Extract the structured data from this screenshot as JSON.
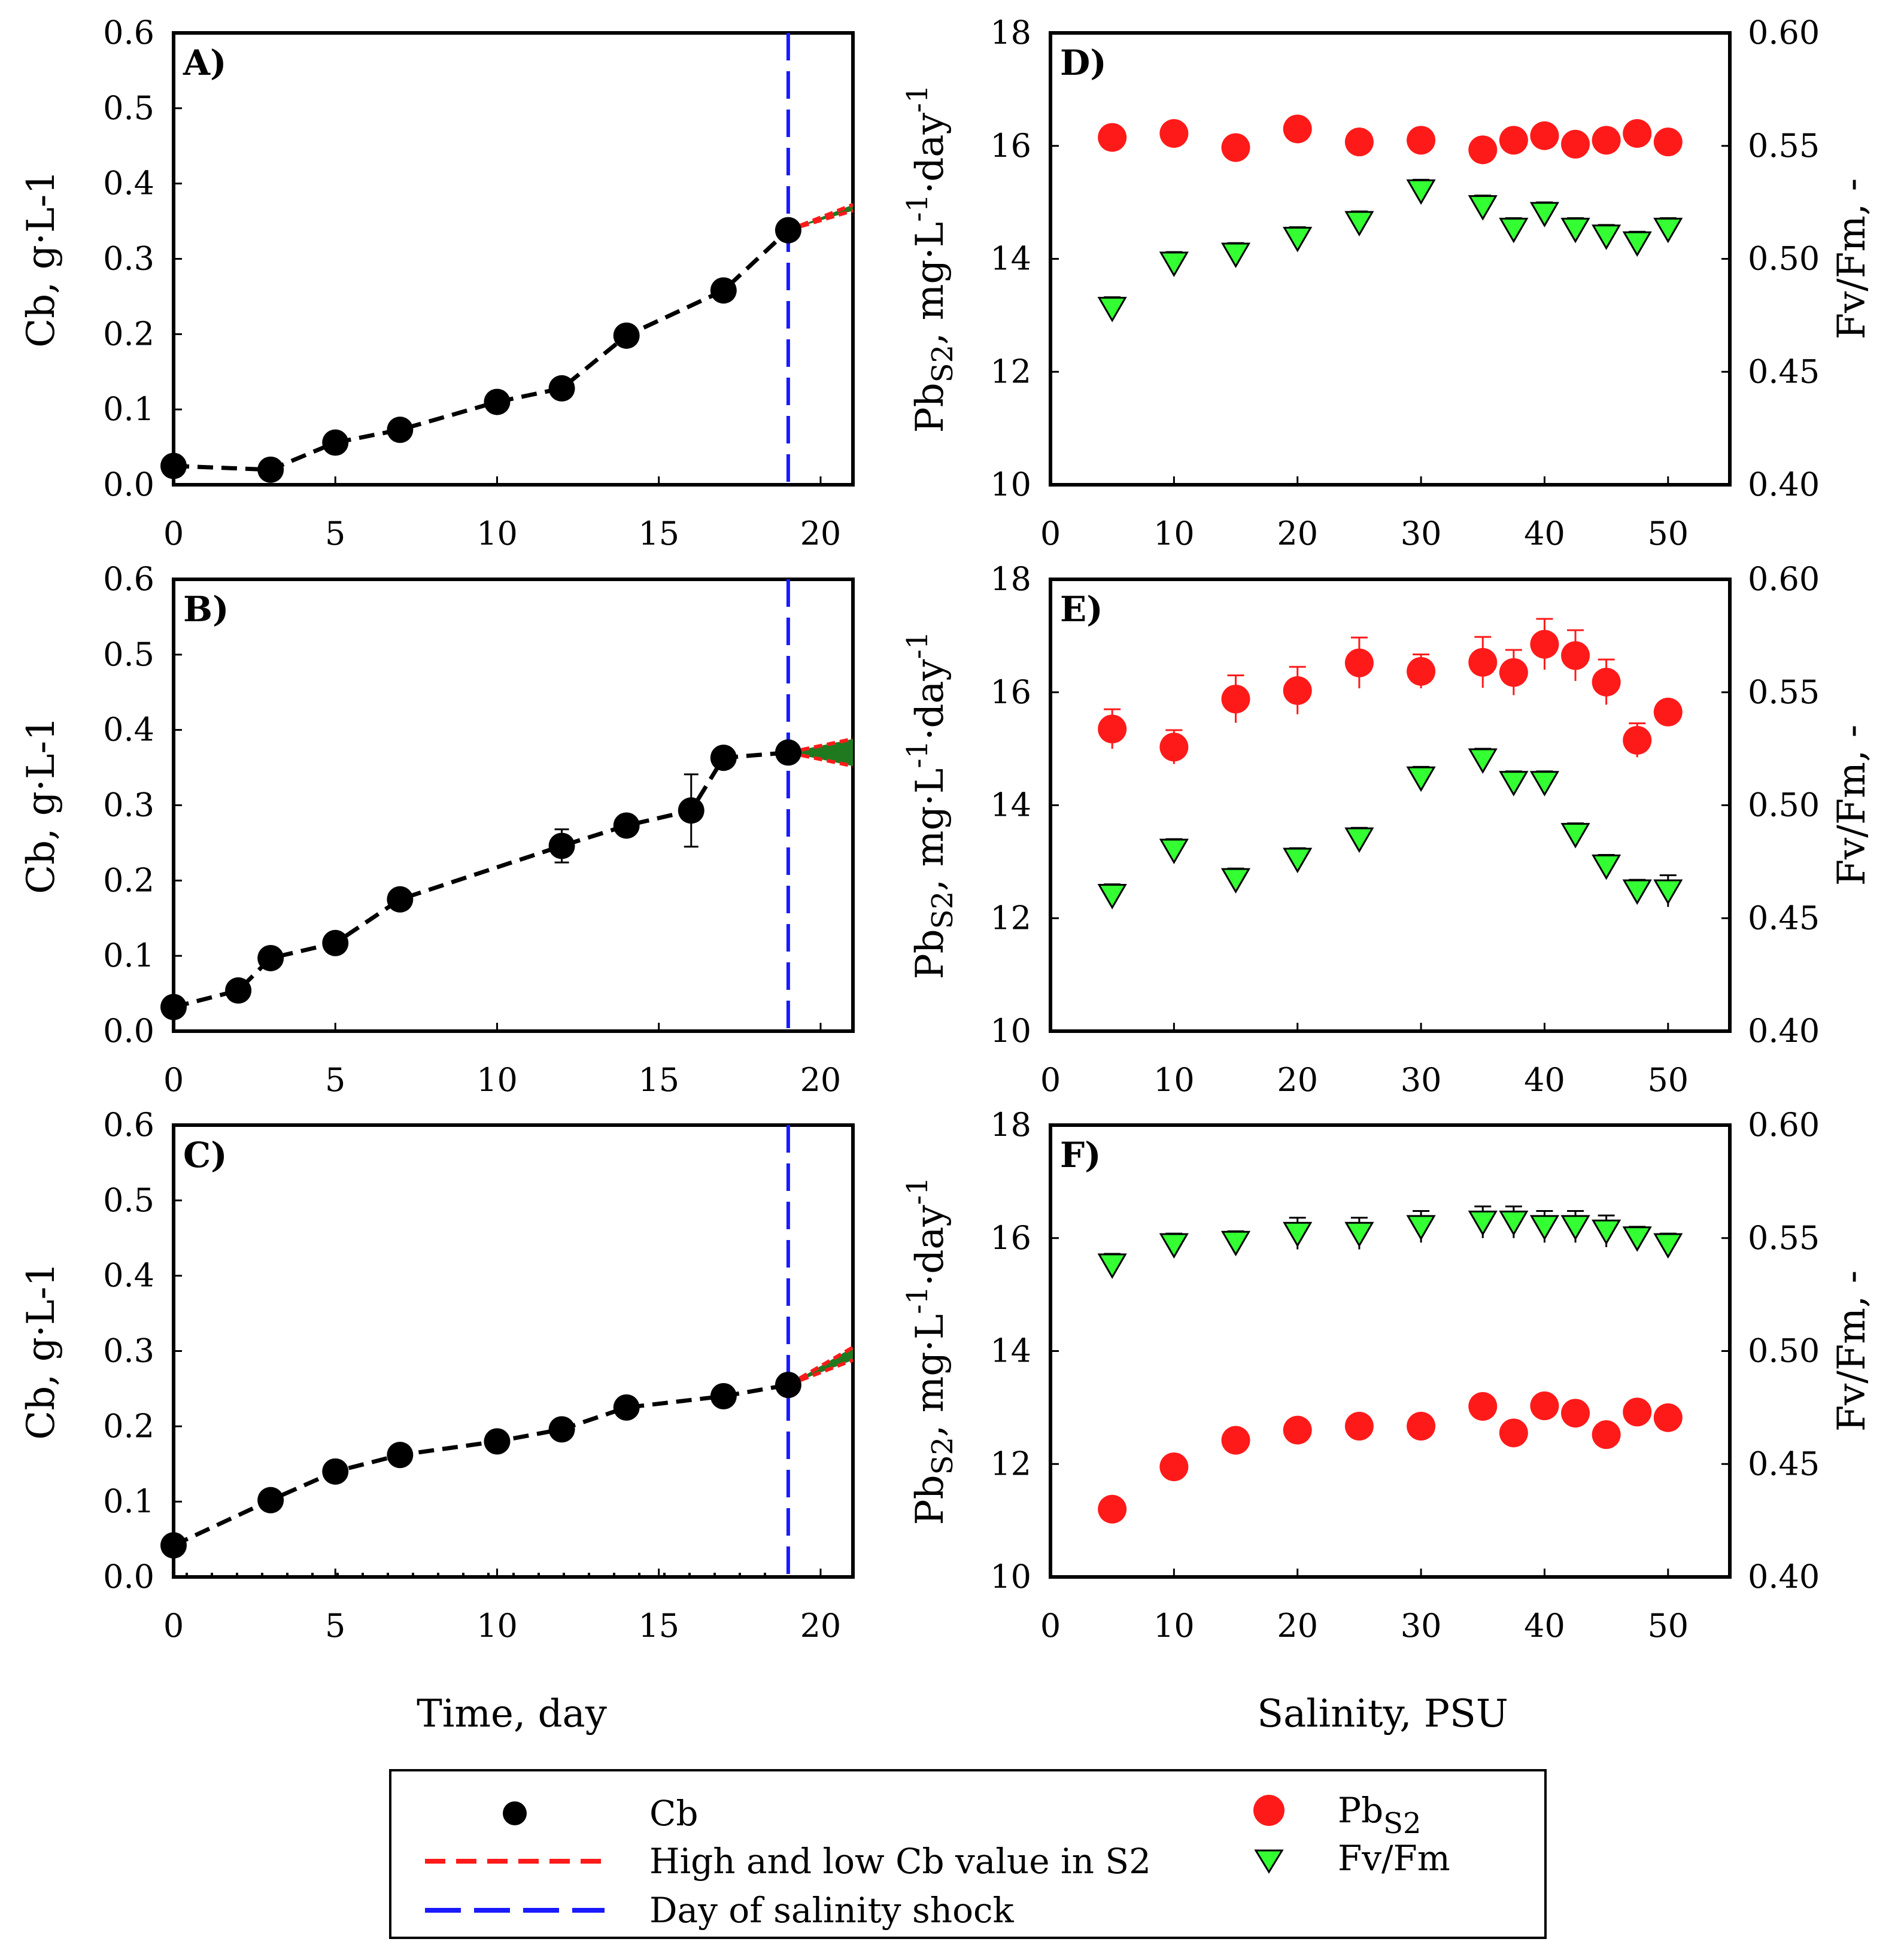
{
  "colors": {
    "cb_marker": "#000000",
    "high_low_line": "#ff1a1a",
    "high_low_fill": "#1f7a1f",
    "shock_line": "#1a1aff",
    "pb_marker": "#ff1a1a",
    "fvfm_marker": "#33ff33"
  },
  "left_xlabel": "Time, day",
  "right_xlabel": "Salinity, PSU",
  "left_ylabel": "Cb, g·L-1",
  "right_ylabel": {
    "prefix": "Pb",
    "prefix_sub": "S2",
    "middle": ", mg·L",
    "sup1": "-1",
    "middle2": "·day",
    "sup2": "-1"
  },
  "right_y2label": "Fv/Fm, -",
  "legend": {
    "cb": "Cb",
    "high_low": "High and low Cb value in S2",
    "shock": "Day of salinity shock",
    "pb_prefix": "Pb",
    "pb_sub": "S2",
    "fvfm": "Fv/Fm"
  },
  "chart_data": [
    {
      "panel": "A)",
      "type": "line",
      "xlim": [
        0,
        21
      ],
      "ylim": [
        0,
        0.6
      ],
      "xticks": [
        "0",
        "5",
        "10",
        "15",
        "20"
      ],
      "yticks": [
        "0.0",
        "0.1",
        "0.2",
        "0.3",
        "0.4",
        "0.5",
        "0.6"
      ],
      "shock_day": 19,
      "series": [
        {
          "name": "Cb",
          "x": [
            0,
            3,
            5,
            7,
            10,
            12,
            14,
            17,
            19
          ],
          "y": [
            0.025,
            0.02,
            0.056,
            0.073,
            0.11,
            0.128,
            0.198,
            0.258,
            0.338
          ],
          "err": [
            0,
            0,
            0,
            0,
            0,
            0,
            0,
            0,
            0
          ]
        }
      ],
      "high_low": {
        "x": [
          19,
          21
        ],
        "high": [
          0.338,
          0.372
        ],
        "low": [
          0.338,
          0.364
        ]
      }
    },
    {
      "panel": "B)",
      "type": "line",
      "xlim": [
        0,
        21
      ],
      "ylim": [
        0,
        0.6
      ],
      "xticks": [
        "0",
        "5",
        "10",
        "15",
        "20"
      ],
      "yticks": [
        "0.0",
        "0.1",
        "0.2",
        "0.3",
        "0.4",
        "0.5",
        "0.6"
      ],
      "shock_day": 19,
      "series": [
        {
          "name": "Cb",
          "x": [
            0,
            2,
            3,
            5,
            7,
            12,
            14,
            16,
            17,
            19
          ],
          "y": [
            0.032,
            0.054,
            0.097,
            0.117,
            0.175,
            0.246,
            0.273,
            0.293,
            0.363,
            0.37
          ],
          "err": [
            0,
            0,
            0.012,
            0.01,
            0,
            0.022,
            0,
            0.048,
            0,
            0
          ]
        }
      ],
      "high_low": {
        "x": [
          19,
          21
        ],
        "high": [
          0.37,
          0.388
        ],
        "low": [
          0.37,
          0.352
        ]
      }
    },
    {
      "panel": "C)",
      "type": "line",
      "xlim": [
        0,
        21
      ],
      "ylim": [
        0,
        0.6
      ],
      "xticks": [
        "0",
        "5",
        "10",
        "15",
        "20"
      ],
      "yticks": [
        "0.0",
        "0.1",
        "0.2",
        "0.3",
        "0.4",
        "0.5",
        "0.6"
      ],
      "shock_day": 19,
      "series": [
        {
          "name": "Cb",
          "x": [
            0,
            3,
            5,
            7,
            10,
            12,
            14,
            17,
            19
          ],
          "y": [
            0.042,
            0.102,
            0.14,
            0.162,
            0.18,
            0.196,
            0.225,
            0.24,
            0.255
          ],
          "err": [
            0,
            0,
            0,
            0,
            0,
            0,
            0,
            0,
            0
          ]
        }
      ],
      "high_low": {
        "x": [
          19,
          21
        ],
        "high": [
          0.255,
          0.305
        ],
        "low": [
          0.255,
          0.288
        ]
      }
    },
    {
      "panel": "D)",
      "type": "scatter",
      "xlim": [
        0,
        55
      ],
      "ylim": [
        10,
        18
      ],
      "y2lim": [
        0.4,
        0.6
      ],
      "xticks": [
        "0",
        "10",
        "20",
        "30",
        "40",
        "50"
      ],
      "yticks": [
        "10",
        "12",
        "14",
        "16",
        "18"
      ],
      "y2ticks": [
        "0.40",
        "0.45",
        "0.50",
        "0.55",
        "0.60"
      ],
      "series": [
        {
          "name": "PbS2",
          "x": [
            5,
            10,
            15,
            20,
            25,
            30,
            35,
            37.5,
            40,
            42.5,
            45,
            47.5,
            50
          ],
          "y": [
            16.15,
            16.22,
            15.97,
            16.3,
            16.07,
            16.1,
            15.93,
            16.1,
            16.18,
            16.03,
            16.1,
            16.22,
            16.07
          ],
          "err": [
            0,
            0,
            0,
            0,
            0,
            0,
            0,
            0,
            0,
            0,
            0,
            0,
            0
          ]
        },
        {
          "name": "Fv/Fm",
          "axis": "y2",
          "x": [
            5,
            10,
            15,
            20,
            25,
            30,
            35,
            37.5,
            40,
            42.5,
            45,
            47.5,
            50
          ],
          "y": [
            0.478,
            0.498,
            0.502,
            0.509,
            0.516,
            0.53,
            0.523,
            0.513,
            0.52,
            0.513,
            0.51,
            0.507,
            0.513
          ],
          "err": [
            0.005,
            0.005,
            0.005,
            0.005,
            0.005,
            0.005,
            0.005,
            0.005,
            0.005,
            0.005,
            0.005,
            0.005,
            0.005
          ]
        }
      ]
    },
    {
      "panel": "E)",
      "type": "scatter",
      "xlim": [
        0,
        55
      ],
      "ylim": [
        10,
        18
      ],
      "y2lim": [
        0.4,
        0.6
      ],
      "xticks": [
        "0",
        "10",
        "20",
        "30",
        "40",
        "50"
      ],
      "yticks": [
        "10",
        "12",
        "14",
        "16",
        "18"
      ],
      "y2ticks": [
        "0.40",
        "0.45",
        "0.50",
        "0.55",
        "0.60"
      ],
      "series": [
        {
          "name": "PbS2",
          "x": [
            5,
            10,
            15,
            20,
            25,
            30,
            35,
            37.5,
            40,
            42.5,
            45,
            47.5,
            50
          ],
          "y": [
            15.35,
            15.03,
            15.88,
            16.03,
            16.52,
            16.37,
            16.53,
            16.35,
            16.85,
            16.65,
            16.18,
            15.15,
            15.65
          ],
          "err": [
            0.35,
            0.3,
            0.42,
            0.42,
            0.45,
            0.3,
            0.45,
            0.4,
            0.45,
            0.45,
            0.4,
            0.3,
            0
          ]
        },
        {
          "name": "Fv/Fm",
          "axis": "y2",
          "x": [
            5,
            10,
            15,
            20,
            25,
            30,
            35,
            37.5,
            40,
            42.5,
            45,
            47.5,
            50
          ],
          "y": [
            0.46,
            0.48,
            0.467,
            0.476,
            0.485,
            0.512,
            0.52,
            0.51,
            0.51,
            0.487,
            0.473,
            0.462,
            0.462
          ],
          "err": [
            0.005,
            0.005,
            0.005,
            0.005,
            0.005,
            0.005,
            0.005,
            0.005,
            0.005,
            0.005,
            0.005,
            0.005,
            0.007
          ]
        }
      ]
    },
    {
      "panel": "F)",
      "type": "scatter",
      "xlim": [
        0,
        55
      ],
      "ylim": [
        10,
        18
      ],
      "y2lim": [
        0.4,
        0.6
      ],
      "xticks": [
        "0",
        "10",
        "20",
        "30",
        "40",
        "50"
      ],
      "yticks": [
        "10",
        "12",
        "14",
        "16",
        "18"
      ],
      "y2ticks": [
        "0.40",
        "0.45",
        "0.50",
        "0.55",
        "0.60"
      ],
      "series": [
        {
          "name": "PbS2",
          "x": [
            5,
            10,
            15,
            20,
            25,
            30,
            35,
            37.5,
            40,
            42.5,
            45,
            47.5,
            50
          ],
          "y": [
            11.2,
            11.95,
            12.42,
            12.6,
            12.67,
            12.67,
            13.02,
            12.55,
            13.03,
            12.9,
            12.52,
            12.92,
            12.82
          ],
          "err": [
            0,
            0,
            0,
            0,
            0,
            0,
            0,
            0,
            0,
            0,
            0,
            0,
            0
          ]
        },
        {
          "name": "Fv/Fm",
          "axis": "y2",
          "x": [
            5,
            10,
            15,
            20,
            25,
            30,
            35,
            37.5,
            40,
            42.5,
            45,
            47.5,
            50
          ],
          "y": [
            0.538,
            0.547,
            0.548,
            0.552,
            0.552,
            0.555,
            0.557,
            0.557,
            0.555,
            0.555,
            0.553,
            0.55,
            0.547
          ],
          "err": [
            0.005,
            0.005,
            0.005,
            0.007,
            0.007,
            0.007,
            0.007,
            0.007,
            0.007,
            0.007,
            0.007,
            0.005,
            0.005
          ]
        }
      ]
    }
  ]
}
